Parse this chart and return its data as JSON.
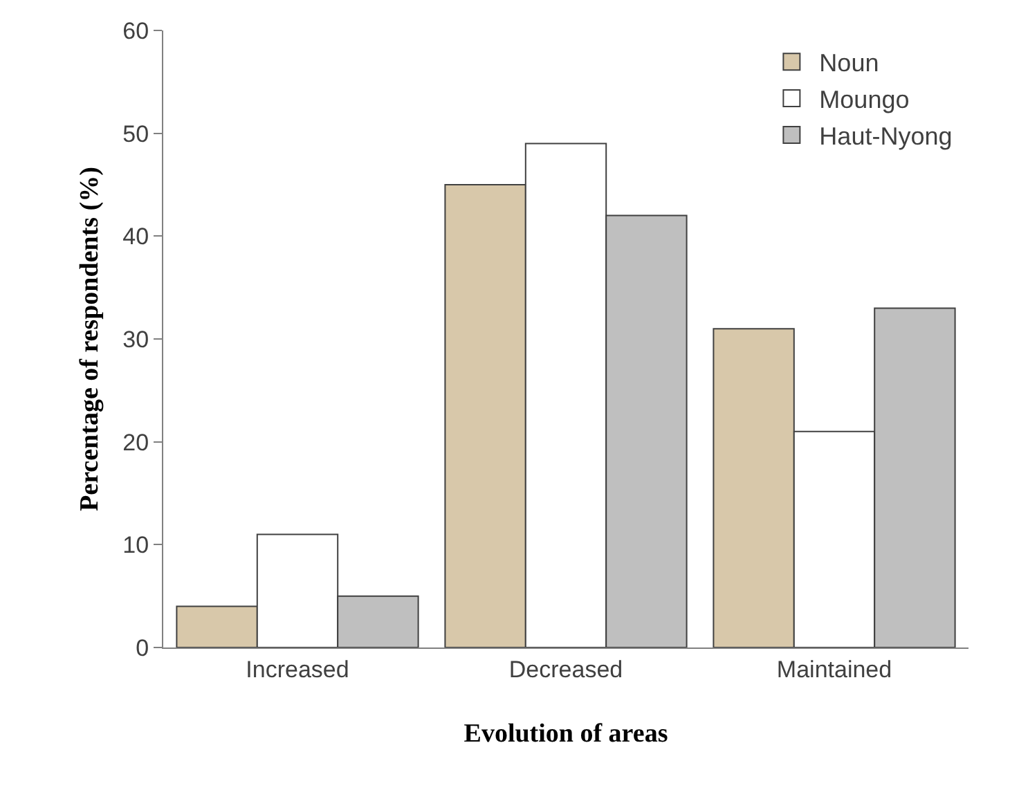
{
  "chart_data": {
    "type": "bar",
    "xlabel": "Evolution of areas",
    "ylabel": "Percentage of respondents (%)",
    "categories": [
      "Increased",
      "Decreased",
      "Maintained"
    ],
    "series": [
      {
        "name": "Noun",
        "color": "#d8c8aa",
        "values": [
          4,
          45,
          31
        ]
      },
      {
        "name": "Moungo",
        "color": "#ffffff",
        "values": [
          11,
          49,
          21
        ]
      },
      {
        "name": "Haut-Nyong",
        "color": "#bfbfbf",
        "values": [
          5,
          42,
          33
        ]
      }
    ],
    "ylim": [
      0,
      60
    ],
    "yticks": [
      0,
      10,
      20,
      30,
      40,
      50,
      60
    ],
    "legend": "top right"
  }
}
